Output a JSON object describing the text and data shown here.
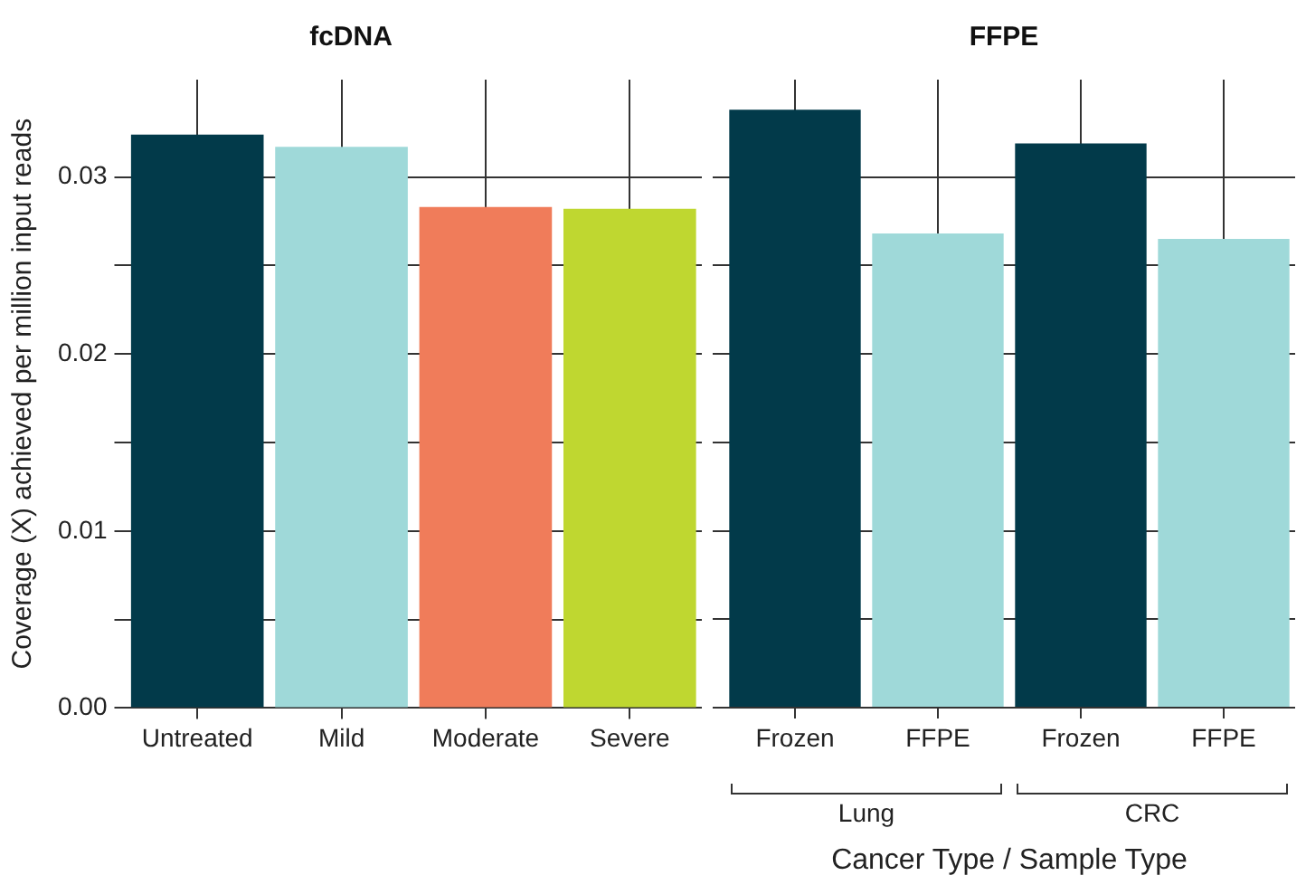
{
  "chart_data": [
    {
      "type": "bar",
      "title": "fcDNA",
      "ylabel": "Coverage (X) achieved per million input reads",
      "categories": [
        "Untreated",
        "Mild",
        "Moderate",
        "Severe"
      ],
      "values": [
        0.0324,
        0.0317,
        0.0283,
        0.0282
      ],
      "colors": [
        "#023a4a",
        "#9fd9d9",
        "#f07c5a",
        "#bfd730"
      ],
      "ylim": [
        0,
        0.0355
      ],
      "yticks": [
        {
          "value": 0,
          "label": "0.00"
        },
        {
          "value": 0.005,
          "label": null
        },
        {
          "value": 0.01,
          "label": "0.01"
        },
        {
          "value": 0.015,
          "label": null
        },
        {
          "value": 0.02,
          "label": "0.02"
        },
        {
          "value": 0.025,
          "label": null
        },
        {
          "value": 0.03,
          "label": "0.03"
        }
      ],
      "grid": true
    },
    {
      "type": "bar",
      "title": "FFPE",
      "xlabel": "Cancer Type / Sample Type",
      "categories": [
        "Frozen",
        "FFPE",
        "Frozen",
        "FFPE"
      ],
      "values": [
        0.0338,
        0.0268,
        0.0319,
        0.0265
      ],
      "colors": [
        "#023a4a",
        "#9fd9d9",
        "#023a4a",
        "#9fd9d9"
      ],
      "annotations": [
        "Lung",
        "CRC"
      ],
      "ylim": [
        0,
        0.0355
      ],
      "yticks": [
        {
          "value": 0,
          "label": null
        },
        {
          "value": 0.005,
          "label": null
        },
        {
          "value": 0.01,
          "label": null
        },
        {
          "value": 0.015,
          "label": null
        },
        {
          "value": 0.02,
          "label": null
        },
        {
          "value": 0.025,
          "label": null
        },
        {
          "value": 0.03,
          "label": null
        }
      ],
      "grid": true,
      "tick_labels": "x"
    }
  ]
}
